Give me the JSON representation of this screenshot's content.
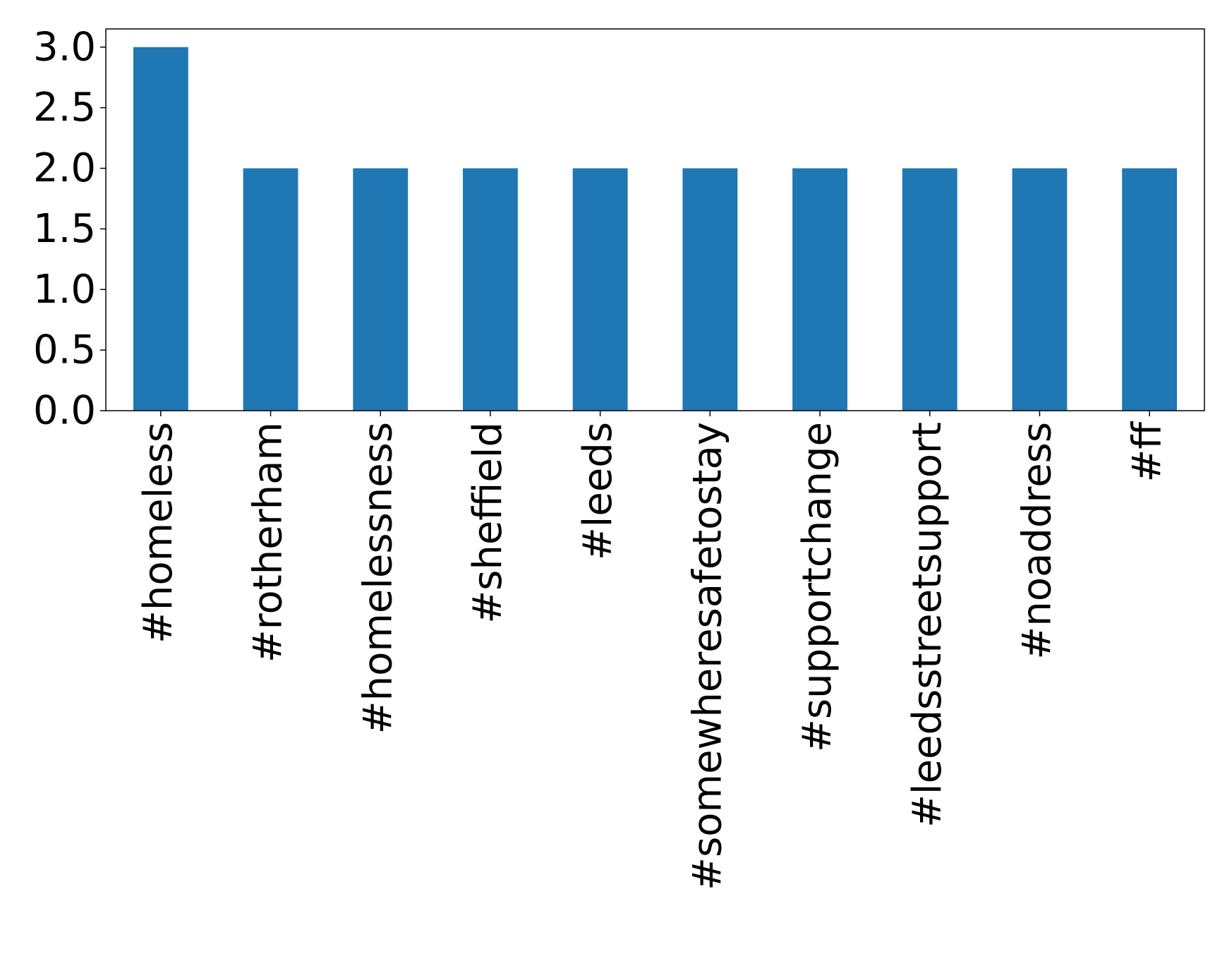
{
  "chart_data": {
    "type": "bar",
    "title": "",
    "xlabel": "",
    "ylabel": "",
    "categories": [
      "#homeless",
      "#rotherham",
      "#homelessness",
      "#sheffield",
      "#leeds",
      "#somewheresafetostay",
      "#supportchange",
      "#leedsstreetsupport",
      "#noaddress",
      "#ff"
    ],
    "values": [
      3,
      2,
      2,
      2,
      2,
      2,
      2,
      2,
      2,
      2
    ],
    "ylim": [
      0,
      3.15
    ],
    "yticks": [
      "0.0",
      "0.5",
      "1.0",
      "1.5",
      "2.0",
      "2.5",
      "3.0"
    ],
    "grid": false,
    "legend": "none",
    "bar_color": "#1f77b4"
  }
}
